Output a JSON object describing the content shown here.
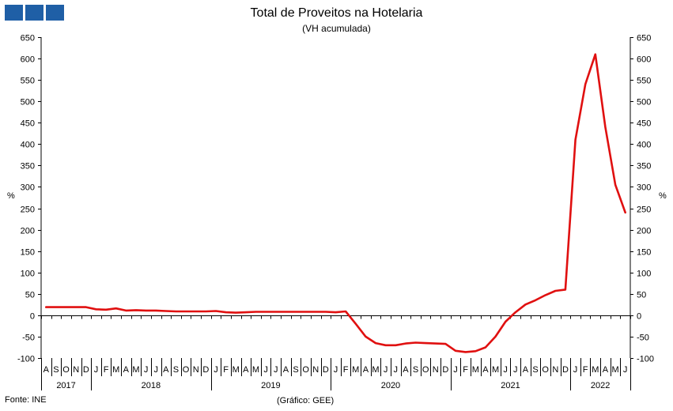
{
  "chart_data": {
    "type": "line",
    "title": "Total de Proveitos na Hotelaria",
    "subtitle": "(VH acumulada)",
    "ylabel_left": "%",
    "ylabel_right": "%",
    "ylim": [
      -100,
      650
    ],
    "yticks": [
      650,
      600,
      550,
      500,
      450,
      400,
      350,
      300,
      250,
      200,
      150,
      100,
      50,
      0,
      -50,
      -100
    ],
    "grid": false,
    "legend": "none",
    "line_color": "#e01010",
    "x": [
      "2017-08",
      "2017-09",
      "2017-10",
      "2017-11",
      "2017-12",
      "2018-01",
      "2018-02",
      "2018-03",
      "2018-04",
      "2018-05",
      "2018-06",
      "2018-07",
      "2018-08",
      "2018-09",
      "2018-10",
      "2018-11",
      "2018-12",
      "2019-01",
      "2019-02",
      "2019-03",
      "2019-04",
      "2019-05",
      "2019-06",
      "2019-07",
      "2019-08",
      "2019-09",
      "2019-10",
      "2019-11",
      "2019-12",
      "2020-01",
      "2020-02",
      "2020-03",
      "2020-04",
      "2020-05",
      "2020-06",
      "2020-07",
      "2020-08",
      "2020-09",
      "2020-10",
      "2020-11",
      "2020-12",
      "2021-01",
      "2021-02",
      "2021-03",
      "2021-04",
      "2021-05",
      "2021-06",
      "2021-07",
      "2021-08",
      "2021-09",
      "2021-10",
      "2021-11",
      "2021-12",
      "2022-01",
      "2022-02",
      "2022-03",
      "2022-04",
      "2022-05",
      "2022-06"
    ],
    "month_labels": [
      "A",
      "S",
      "O",
      "N",
      "D",
      "J",
      "F",
      "M",
      "A",
      "M",
      "J",
      "J",
      "A",
      "S",
      "O",
      "N",
      "D",
      "J",
      "F",
      "M",
      "A",
      "M",
      "J",
      "J",
      "A",
      "S",
      "O",
      "N",
      "D",
      "J",
      "F",
      "M",
      "A",
      "M",
      "J",
      "J",
      "A",
      "S",
      "O",
      "N",
      "D",
      "J",
      "F",
      "M",
      "A",
      "M",
      "J",
      "J",
      "A",
      "S",
      "O",
      "N",
      "D",
      "J",
      "F",
      "M",
      "A",
      "M",
      "J"
    ],
    "year_labels": [
      {
        "label": "2017",
        "start": 0,
        "end": 4
      },
      {
        "label": "2018",
        "start": 5,
        "end": 16
      },
      {
        "label": "2019",
        "start": 17,
        "end": 28
      },
      {
        "label": "2020",
        "start": 29,
        "end": 40
      },
      {
        "label": "2021",
        "start": 41,
        "end": 52
      },
      {
        "label": "2022",
        "start": 53,
        "end": 58
      }
    ],
    "series": [
      {
        "values": [
          19,
          19,
          19,
          19,
          19,
          14,
          13,
          16,
          11,
          12,
          11,
          11,
          10,
          9,
          9,
          9,
          9,
          10,
          7,
          6,
          7,
          8,
          8,
          8,
          8,
          8,
          8,
          8,
          8,
          7,
          9,
          -20,
          -50,
          -65,
          -70,
          -70,
          -66,
          -64,
          -65,
          -66,
          -67,
          -83,
          -86,
          -84,
          -75,
          -50,
          -15,
          7,
          25,
          35,
          47,
          57,
          60,
          410,
          540,
          610,
          440,
          305,
          240
        ]
      }
    ]
  },
  "footer": {
    "source": "Fonte: INE",
    "credit": "(Gráfico: GEE)"
  }
}
